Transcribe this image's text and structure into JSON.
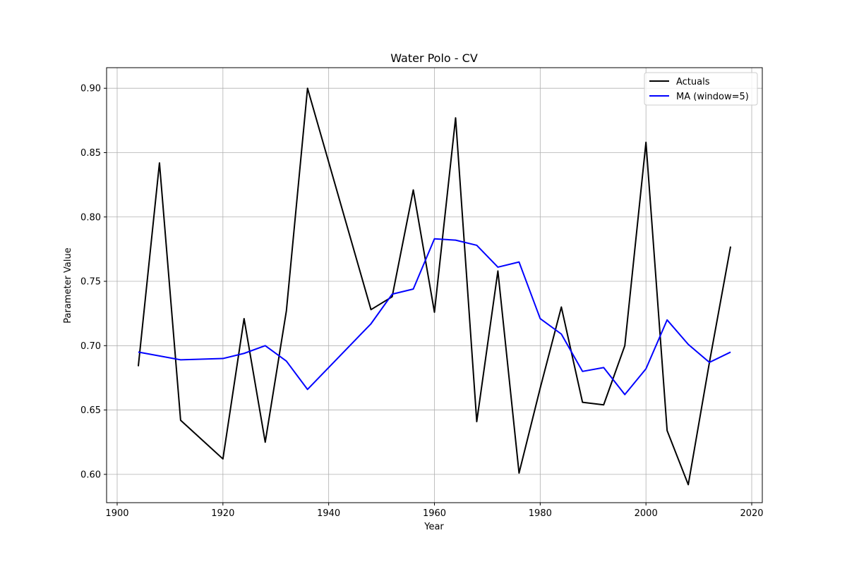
{
  "chart_data": {
    "type": "line",
    "title": "Water Polo - CV",
    "xlabel": "Year",
    "ylabel": "Parameter Value",
    "xlim": [
      1898,
      2022
    ],
    "ylim": [
      0.578,
      0.916
    ],
    "xticks": [
      1900,
      1920,
      1940,
      1960,
      1980,
      2000,
      2020
    ],
    "yticks": [
      0.6,
      0.65,
      0.7,
      0.75,
      0.8,
      0.85,
      0.9
    ],
    "grid": true,
    "legend_position": "top-right",
    "series": [
      {
        "name": "Actuals",
        "color": "#000000",
        "x": [
          1904,
          1908,
          1912,
          1920,
          1924,
          1928,
          1932,
          1936,
          1948,
          1952,
          1956,
          1960,
          1964,
          1968,
          1972,
          1976,
          1980,
          1984,
          1988,
          1992,
          1996,
          2000,
          2004,
          2008,
          2012,
          2016
        ],
        "y": [
          0.684,
          0.842,
          0.642,
          0.612,
          0.721,
          0.625,
          0.727,
          0.9,
          0.728,
          0.738,
          0.821,
          0.726,
          0.877,
          0.641,
          0.758,
          0.601,
          0.667,
          0.73,
          0.656,
          0.654,
          0.7,
          0.858,
          0.634,
          0.592,
          0.687,
          0.777
        ]
      },
      {
        "name": "MA (window=5)",
        "color": "#0000ff",
        "x": [
          1904,
          1912,
          1920,
          1924,
          1928,
          1932,
          1936,
          1948,
          1952,
          1956,
          1960,
          1964,
          1968,
          1972,
          1976,
          1980,
          1984,
          1988,
          1992,
          1996,
          2000,
          2004,
          2008,
          2012,
          2016
        ],
        "y": [
          0.695,
          0.689,
          0.69,
          0.694,
          0.7,
          0.688,
          0.666,
          0.717,
          0.74,
          0.744,
          0.783,
          0.782,
          0.778,
          0.761,
          0.765,
          0.721,
          0.709,
          0.68,
          0.683,
          0.662,
          0.682,
          0.72,
          0.701,
          0.687,
          0.695
        ]
      }
    ]
  }
}
